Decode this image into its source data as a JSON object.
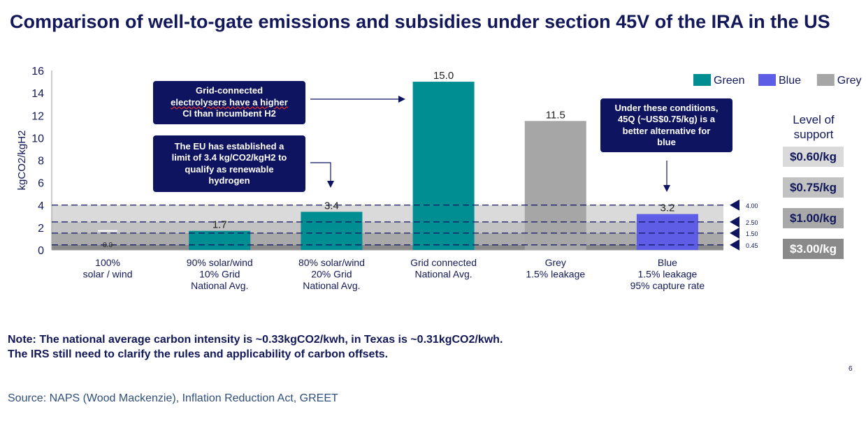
{
  "title": "Comparison of well-to-gate emissions and subsidies under section 45V of the IRA in the US",
  "chart_data": {
    "type": "bar",
    "ylabel": "kgCO2/kgH2",
    "ylim": [
      0,
      16
    ],
    "yticks": [
      0,
      2,
      4,
      6,
      8,
      10,
      12,
      14,
      16
    ],
    "categories": [
      [
        "100%",
        "solar / wind"
      ],
      [
        "90% solar/wind",
        "10% Grid",
        "National Avg."
      ],
      [
        "80% solar/wind",
        "20% Grid",
        "National Avg."
      ],
      [
        "Grid connected",
        "National Avg."
      ],
      [
        "Grey",
        "1.5% leakage"
      ],
      [
        "Blue",
        "1.5% leakage",
        "95% capture rate"
      ]
    ],
    "values": [
      0.0,
      1.7,
      3.4,
      15.0,
      11.5,
      3.2
    ],
    "value_labels": [
      "0.0",
      "1.7",
      "3.4",
      "15.0",
      "11.5",
      "3.2"
    ],
    "bar_series": [
      "Green",
      "Green",
      "Green",
      "Green",
      "Grey",
      "Blue"
    ],
    "legend": [
      {
        "name": "Green",
        "color": "#008e93"
      },
      {
        "name": "Blue",
        "color": "#5d5de6"
      },
      {
        "name": "Grey",
        "color": "#a6a6a6"
      }
    ],
    "legend_position": "top-right",
    "thresholds": [
      4.0,
      2.5,
      1.5,
      0.45
    ],
    "threshold_labels": [
      "4.00",
      "2.50",
      "1.50",
      "0.45"
    ],
    "band_colors": [
      "#dadada",
      "#c2c2c2",
      "#a9a9a9",
      "#8a8a8a"
    ]
  },
  "callouts": {
    "grid": [
      "Grid-connected",
      "electrolysers have a higher",
      "CI than incumbent H2"
    ],
    "eu": [
      "The EU has established a",
      "limit of 3.4 kg/CO2/kgH2  to",
      "qualify as renewable",
      "hydrogen"
    ],
    "blue": [
      "Under these conditions,",
      "45Q (~US$0.75/kg) is a",
      "better alternative for",
      "blue"
    ]
  },
  "support": {
    "title": [
      "Level of",
      "support"
    ],
    "levels": [
      "$0.60/kg",
      "$0.75/kg",
      "$1.00/kg",
      "$3.00/kg"
    ]
  },
  "note": [
    "Note: The national average carbon intensity is ~0.33kgCO2/kwh, in Texas is ~0.31kgCO2/kwh.",
    "The IRS still need to clarify the rules and applicability of carbon offsets."
  ],
  "page_number": "6",
  "source": "Source: NAPS (Wood Mackenzie), Inflation Reduction Act, GREET"
}
